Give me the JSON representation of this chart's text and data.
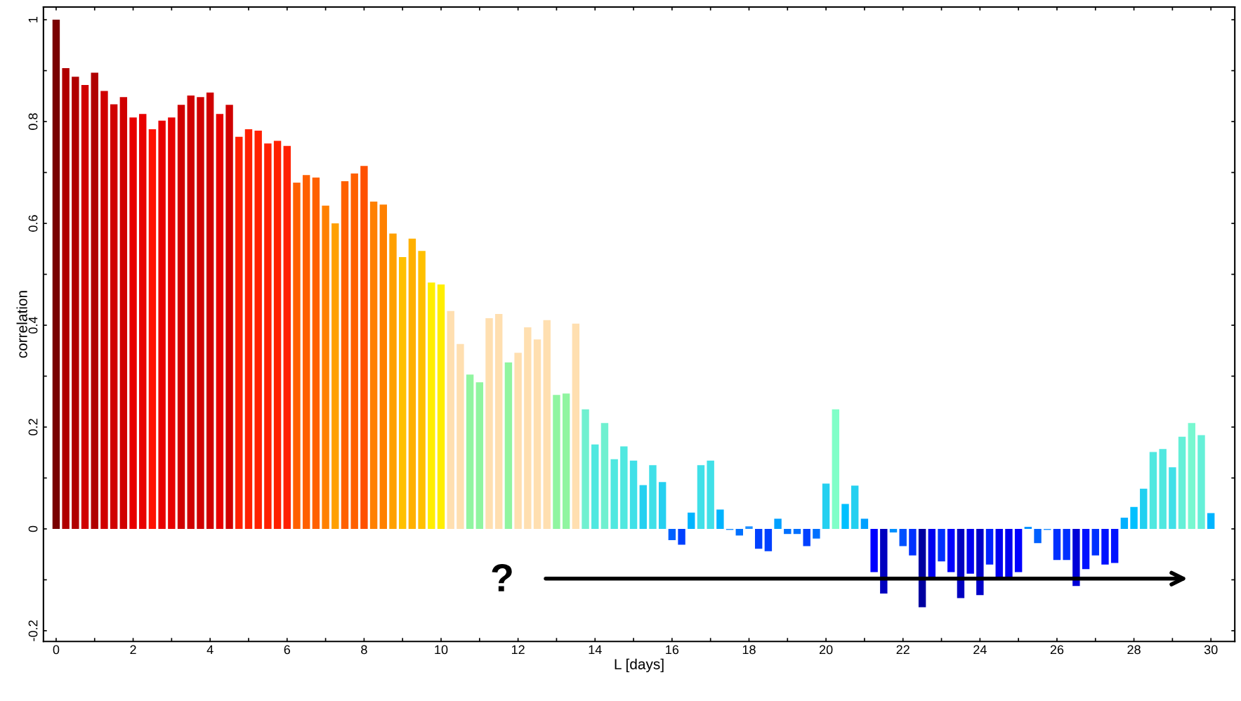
{
  "chart_data": {
    "type": "bar",
    "xlabel": "L [days]",
    "ylabel": "correlation",
    "annotations": [
      "?"
    ],
    "x": [
      0,
      0.25,
      0.5,
      0.75,
      1,
      1.25,
      1.5,
      1.75,
      2,
      2.25,
      2.5,
      2.75,
      3,
      3.25,
      3.5,
      3.75,
      4,
      4.25,
      4.5,
      4.75,
      5,
      5.25,
      5.5,
      5.75,
      6,
      6.25,
      6.5,
      6.75,
      7,
      7.25,
      7.5,
      7.75,
      8,
      8.25,
      8.5,
      8.75,
      9,
      9.25,
      9.5,
      9.75,
      10,
      10.25,
      10.5,
      10.75,
      11,
      11.25,
      11.5,
      11.75,
      12,
      12.25,
      12.5,
      12.75,
      13,
      13.25,
      13.5,
      13.75,
      14,
      14.25,
      14.5,
      14.75,
      15,
      15.25,
      15.5,
      15.75,
      16,
      16.25,
      16.5,
      16.75,
      17,
      17.25,
      17.5,
      17.75,
      18,
      18.25,
      18.5,
      18.75,
      19,
      19.25,
      19.5,
      19.75,
      20,
      20.25,
      20.5,
      20.75,
      21,
      21.25,
      21.5,
      21.75,
      22,
      22.25,
      22.5,
      22.75,
      23,
      23.25,
      23.5,
      23.75,
      24,
      24.25,
      24.5,
      24.75,
      25,
      25.25,
      25.5,
      25.75,
      26,
      26.25,
      26.5,
      26.75,
      27,
      27.25,
      27.5,
      27.75,
      28,
      28.25,
      28.5,
      28.75,
      29,
      29.25,
      29.5,
      29.75,
      30
    ],
    "values": [
      1.0,
      0.905,
      0.888,
      0.872,
      0.896,
      0.86,
      0.834,
      0.848,
      0.808,
      0.815,
      0.785,
      0.802,
      0.808,
      0.833,
      0.851,
      0.848,
      0.857,
      0.815,
      0.833,
      0.77,
      0.785,
      0.782,
      0.757,
      0.762,
      0.752,
      0.68,
      0.695,
      0.69,
      0.635,
      0.6,
      0.683,
      0.698,
      0.713,
      0.643,
      0.637,
      0.58,
      0.534,
      0.57,
      0.546,
      0.484,
      0.48,
      0.428,
      0.363,
      0.303,
      0.288,
      0.414,
      0.422,
      0.327,
      0.346,
      0.396,
      0.372,
      0.41,
      0.263,
      0.266,
      0.403,
      0.235,
      0.166,
      0.208,
      0.137,
      0.162,
      0.134,
      0.086,
      0.125,
      0.092,
      -0.022,
      -0.031,
      0.032,
      0.125,
      0.134,
      0.038,
      -0.002,
      -0.013,
      0.005,
      -0.039,
      -0.044,
      0.02,
      -0.01,
      -0.01,
      -0.034,
      -0.019,
      0.089,
      0.235,
      0.049,
      0.085,
      0.02,
      -0.085,
      -0.127,
      -0.007,
      -0.034,
      -0.052,
      -0.154,
      -0.098,
      -0.064,
      -0.085,
      -0.136,
      -0.088,
      -0.13,
      -0.07,
      -0.098,
      -0.098,
      -0.085,
      0.004,
      -0.028,
      -0.002,
      -0.061,
      -0.061,
      -0.112,
      -0.079,
      -0.052,
      -0.07,
      -0.067,
      0.022,
      0.043,
      0.079,
      0.151,
      0.157,
      0.121,
      0.181,
      0.208,
      0.184,
      0.031
    ],
    "colors": [
      "#7a0000",
      "#b00000",
      "#b00000",
      "#d00000",
      "#b00000",
      "#d00000",
      "#d00000",
      "#d00000",
      "#e80000",
      "#e80000",
      "#ff1000",
      "#e80000",
      "#e80000",
      "#d00000",
      "#d00000",
      "#d00000",
      "#d00000",
      "#e80000",
      "#d00000",
      "#ff2000",
      "#ff2000",
      "#ff2000",
      "#ff2000",
      "#ff2000",
      "#ff2000",
      "#ff6000",
      "#ff6000",
      "#ff6000",
      "#ff8000",
      "#ffa000",
      "#ff6000",
      "#ff6000",
      "#ff5000",
      "#ff8000",
      "#ff8000",
      "#ffa000",
      "#ffc000",
      "#ffb000",
      "#ffc000",
      "#ffee00",
      "#ffee00",
      "#ffdfb0",
      "#ffdfb0",
      "#90f5a0",
      "#90f5a0",
      "#ffdfb0",
      "#ffdfb0",
      "#90f5a0",
      "#ffdfb0",
      "#ffdfb0",
      "#ffdfb0",
      "#ffdfb0",
      "#90f5a0",
      "#90f5a0",
      "#ffdfb0",
      "#70f0d0",
      "#50e8e0",
      "#70f0d0",
      "#50e8e0",
      "#50e8e0",
      "#40e0e8",
      "#25d0f0",
      "#40e0e8",
      "#25d0f0",
      "#0060ff",
      "#0040ff",
      "#00b4ff",
      "#40e0e8",
      "#40e0e8",
      "#00b4ff",
      "#2090ff",
      "#0070ff",
      "#2090ff",
      "#0040ff",
      "#0040ff",
      "#00a0ff",
      "#0070ff",
      "#0070ff",
      "#0040ff",
      "#0070ff",
      "#25d0f0",
      "#80ffc8",
      "#00c0ff",
      "#25d0f0",
      "#00a0ff",
      "#0000ff",
      "#0000c0",
      "#0090ff",
      "#0050ff",
      "#0030ff",
      "#0000a0",
      "#0000f0",
      "#0030ff",
      "#0000ff",
      "#0000c0",
      "#0000f0",
      "#0000c8",
      "#0020ff",
      "#0000f0",
      "#0000f0",
      "#0000ff",
      "#0090ff",
      "#0060ff",
      "#2090ff",
      "#0030ff",
      "#0030ff",
      "#0000d8",
      "#0010ff",
      "#0030ff",
      "#0010ff",
      "#0010ff",
      "#00b0ff",
      "#00c0ff",
      "#20d0f0",
      "#50e8e0",
      "#50e8e0",
      "#40e0e8",
      "#65f0d8",
      "#78f8d0",
      "#65f0d8",
      "#00b4ff"
    ],
    "xlim": [
      -0.33,
      30.62
    ],
    "ylim": [
      -0.221,
      1.025
    ],
    "xticks": [
      0,
      {
        "value": 1,
        "label": null
      },
      2,
      {
        "value": 3,
        "label": null
      },
      4,
      {
        "value": 5,
        "label": null
      },
      6,
      {
        "value": 7,
        "label": null
      },
      8,
      {
        "value": 9,
        "label": null
      },
      10,
      {
        "value": 11,
        "label": null
      },
      12,
      {
        "value": 13,
        "label": null
      },
      14,
      {
        "value": 15,
        "label": null
      },
      16,
      {
        "value": 17,
        "label": null
      },
      18,
      {
        "value": 19,
        "label": null
      },
      20,
      {
        "value": 21,
        "label": null
      },
      22,
      {
        "value": 23,
        "label": null
      },
      24,
      {
        "value": 25,
        "label": null
      },
      26,
      {
        "value": 27,
        "label": null
      },
      28,
      {
        "value": 29,
        "label": null
      },
      30
    ],
    "yticks": [
      {
        "value": -0.2,
        "label": "-0.2"
      },
      {
        "value": -0.1,
        "label": null
      },
      0,
      {
        "value": 0.1,
        "label": null
      },
      0.2,
      {
        "value": 0.3,
        "label": null
      },
      0.4,
      {
        "value": 0.5,
        "label": null
      },
      0.6,
      {
        "value": 0.7,
        "label": null
      },
      0.8,
      {
        "value": 0.9,
        "label": null
      },
      1
    ]
  }
}
